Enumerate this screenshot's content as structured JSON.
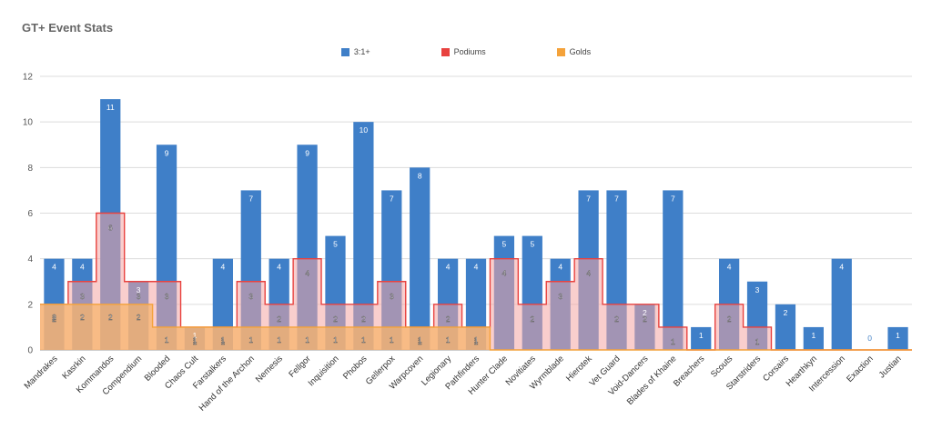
{
  "chart_data": {
    "type": "bar",
    "title": "GT+ Event Stats",
    "xlabel": "",
    "ylabel": "",
    "ylim": [
      0,
      12
    ],
    "yticks": [
      0,
      2,
      4,
      6,
      8,
      10,
      12
    ],
    "grid": true,
    "legend_position": "top",
    "categories": [
      "Mandrakes",
      "Kasrkin",
      "Kommandos",
      "Compendium",
      "Blooded",
      "Chaos Cult",
      "Farstalkers",
      "Hand of the Archon",
      "Nemesis",
      "Fellgor",
      "Inquisition",
      "Phobos",
      "Gellerpox",
      "Warpcoven",
      "Legionary",
      "Pathfinders",
      "Hunter Clade",
      "Novitiates",
      "Wyrmblade",
      "Hierotek",
      "Vet Guard",
      "Void-Dancers",
      "Blades of Khaine",
      "Breachers",
      "Scouts",
      "Starstriders",
      "Corsairs",
      "Hearthkyn",
      "Intercession",
      "Exaction",
      "Justian"
    ],
    "series": [
      {
        "name": "3:1+",
        "type": "bar",
        "color": "#3f7fc8",
        "values": [
          4,
          4,
          11,
          3,
          9,
          1,
          4,
          7,
          4,
          9,
          5,
          10,
          7,
          8,
          4,
          4,
          5,
          5,
          4,
          7,
          7,
          2,
          7,
          1,
          4,
          3,
          2,
          1,
          4,
          0,
          1
        ]
      },
      {
        "name": "Podiums",
        "type": "stepped-area",
        "color": "#e8423f",
        "values": [
          2,
          3,
          6,
          3,
          3,
          1,
          1,
          3,
          2,
          4,
          2,
          2,
          3,
          1,
          2,
          1,
          4,
          2,
          3,
          4,
          2,
          2,
          1,
          0,
          2,
          1,
          0,
          0,
          0,
          0,
          0
        ]
      },
      {
        "name": "Golds",
        "type": "stepped-area",
        "color": "#f4a23a",
        "values": [
          2,
          2,
          2,
          2,
          1,
          1,
          1,
          1,
          1,
          1,
          1,
          1,
          1,
          1,
          1,
          1,
          0,
          0,
          0,
          0,
          0,
          0,
          0,
          0,
          0,
          0,
          0,
          0,
          0,
          0,
          0
        ]
      }
    ]
  }
}
